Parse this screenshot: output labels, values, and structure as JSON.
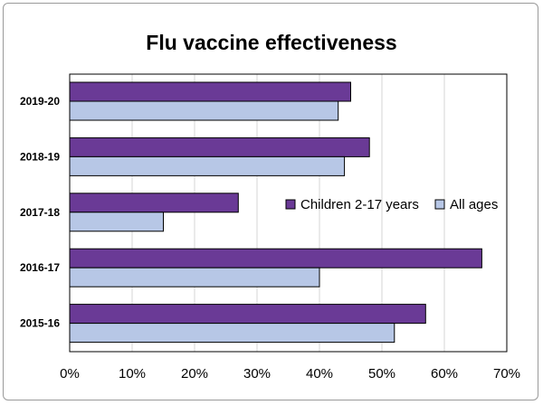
{
  "chart_data": {
    "type": "bar",
    "orientation": "horizontal",
    "title": "Flu vaccine effectiveness",
    "xlabel": "",
    "ylabel": "",
    "categories": [
      "2019-20",
      "2018-19",
      "2017-18",
      "2016-17",
      "2015-16"
    ],
    "series": [
      {
        "name": "Children 2-17 years",
        "values": [
          45,
          48,
          27,
          66,
          57
        ],
        "color": "#6a3a96"
      },
      {
        "name": "All ages",
        "values": [
          43,
          44,
          15,
          40,
          52
        ],
        "color": "#b7c7e6"
      }
    ],
    "xlim": [
      0,
      70
    ],
    "xticks": [
      "0%",
      "10%",
      "20%",
      "30%",
      "40%",
      "50%",
      "60%",
      "70%"
    ],
    "grid": "vertical",
    "legend_position": "right-middle"
  }
}
